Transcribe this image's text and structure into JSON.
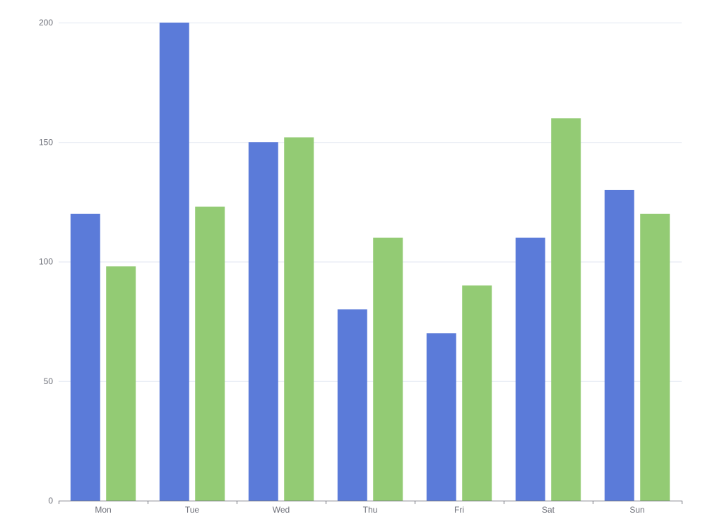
{
  "chart_data": {
    "type": "bar",
    "title": "",
    "xlabel": "",
    "ylabel": "",
    "categories": [
      "Mon",
      "Tue",
      "Wed",
      "Thu",
      "Fri",
      "Sat",
      "Sun"
    ],
    "series": [
      {
        "values": [
          120,
          200,
          150,
          80,
          70,
          110,
          130
        ],
        "color": "#5b7bd9"
      },
      {
        "values": [
          98,
          123,
          152,
          110,
          90,
          160,
          120
        ],
        "color": "#93cb74"
      }
    ],
    "ylim": [
      0,
      200
    ],
    "yticks": [
      "0",
      "50",
      "100",
      "150",
      "200"
    ],
    "grid": true,
    "legend": "none"
  }
}
